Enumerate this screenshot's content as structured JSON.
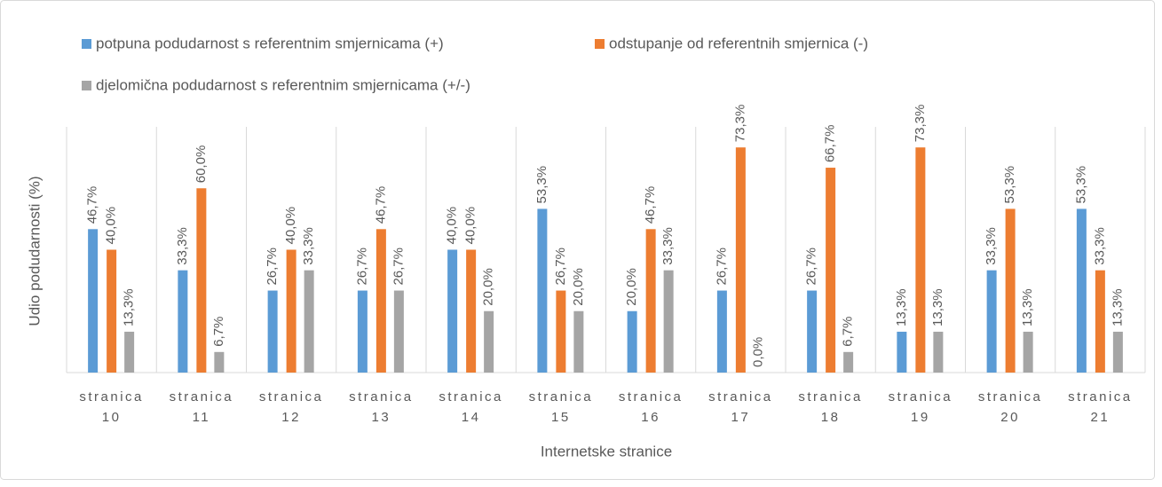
{
  "chart_data": {
    "type": "bar",
    "x_label": "Internetske stranice",
    "y_label": "Udio podudarnosti (%)",
    "categories": [
      "stranica 10",
      "stranica 11",
      "stranica 12",
      "stranica 13",
      "stranica 14",
      "stranica 15",
      "stranica 16",
      "stranica 17",
      "stranica 18",
      "stranica 19",
      "stranica 20",
      "stranica 21"
    ],
    "series": [
      {
        "name": "potpuna podudarnost s referentnim smjernicama (+)",
        "color": "#5b9bd5",
        "values": [
          46.7,
          33.3,
          26.7,
          26.7,
          40.0,
          53.3,
          20.0,
          26.7,
          26.7,
          13.3,
          33.3,
          53.3
        ],
        "value_labels": [
          "46,7%",
          "33,3%",
          "26,7%",
          "26,7%",
          "40,0%",
          "53,3%",
          "20,0%",
          "26,7%",
          "26,7%",
          "13,3%",
          "33,3%",
          "53,3%"
        ]
      },
      {
        "name": "odstupanje od referentnih smjernica (-)",
        "color": "#ed7d31",
        "values": [
          40.0,
          60.0,
          40.0,
          46.7,
          40.0,
          26.7,
          46.7,
          73.3,
          66.7,
          73.3,
          53.3,
          33.3
        ],
        "value_labels": [
          "40,0%",
          "60,0%",
          "40,0%",
          "46,7%",
          "40,0%",
          "26,7%",
          "46,7%",
          "73,3%",
          "66,7%",
          "73,3%",
          "53,3%",
          "33,3%"
        ]
      },
      {
        "name": "djelomična podudarnost s referentnim smjernicama (+/-)",
        "color": "#a5a5a5",
        "values": [
          13.3,
          6.7,
          33.3,
          26.7,
          20.0,
          20.0,
          33.3,
          0.0,
          6.7,
          13.3,
          13.3,
          13.3
        ],
        "value_labels": [
          "13,3%",
          "6,7%",
          "33,3%",
          "26,7%",
          "20,0%",
          "20,0%",
          "33,3%",
          "0,0%",
          "6,7%",
          "13,3%",
          "13,3%",
          "13,3%"
        ]
      }
    ],
    "ylim": [
      0,
      80
    ]
  }
}
